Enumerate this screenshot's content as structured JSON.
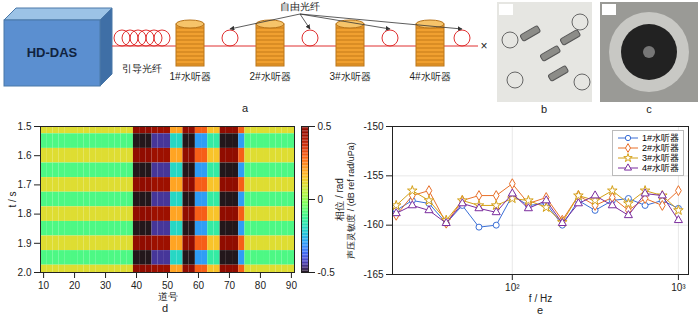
{
  "diagram": {
    "label": "a",
    "source": "HD-DAS",
    "lead_fiber": "引导光纤",
    "free_fiber": "自由光纤",
    "hydrophones": [
      "1#水听器",
      "2#水听器",
      "3#水听器",
      "4#水听器"
    ],
    "end_mark": "×"
  },
  "photos": [
    {
      "label": "b"
    },
    {
      "label": "c"
    }
  ],
  "chart_data": [
    {
      "type": "heatmap",
      "annotations": [
        "d"
      ],
      "xlabel": "道号",
      "ylabel": "t / s",
      "xlim": [
        9,
        91
      ],
      "xticks": [
        10,
        20,
        30,
        40,
        50,
        60,
        70,
        80,
        90
      ],
      "ylim": [
        1.5,
        2.0
      ],
      "yticks": [
        1.5,
        1.6,
        1.7,
        1.8,
        1.9,
        {
          "value": 2,
          "label": "2.0"
        }
      ],
      "color": "turbo",
      "zlabel": "相位 / rad",
      "zlim": [
        -0.5,
        0.5
      ],
      "zticks": [
        -0.5,
        0,
        0.5
      ],
      "cells": {
        "x": [
          10,
          12,
          14,
          16,
          18,
          20,
          22,
          24,
          26,
          28,
          30,
          32,
          34,
          36,
          38,
          40,
          42,
          44,
          46,
          48,
          50,
          52,
          54,
          56,
          58,
          60,
          62,
          64,
          66,
          68,
          70,
          72,
          74,
          76,
          78,
          80,
          82,
          84,
          86,
          88,
          90
        ],
        "y": [
          1.5,
          1.55,
          1.6,
          1.65,
          1.7,
          1.75,
          1.8,
          1.85,
          1.9,
          1.95,
          2.0
        ],
        "values": [
          [
            0.1,
            0.1,
            0.1,
            0.1,
            0.1,
            0.1,
            0.1,
            0.1,
            0.1,
            0.1,
            0.1,
            0.1,
            0.1,
            0.1,
            0.1,
            0.5,
            0.5,
            0.5,
            0.45,
            0.45,
            0.45,
            0.2,
            0.2,
            0.5,
            0.5,
            0.3,
            0.3,
            0.15,
            0.15,
            0.5,
            0.5,
            0.5,
            0.3,
            0.1,
            0.1,
            0.1,
            0.1,
            0.1,
            0.1,
            0.1,
            0.1
          ],
          [
            -0.1,
            -0.1,
            -0.1,
            -0.1,
            -0.1,
            -0.1,
            -0.1,
            -0.1,
            -0.1,
            -0.1,
            -0.1,
            -0.1,
            -0.1,
            -0.1,
            -0.1,
            -0.5,
            -0.5,
            -0.5,
            -0.45,
            -0.45,
            -0.45,
            -0.2,
            -0.2,
            -0.5,
            -0.5,
            -0.3,
            -0.3,
            -0.15,
            -0.15,
            -0.5,
            -0.5,
            -0.5,
            -0.3,
            -0.1,
            -0.1,
            -0.1,
            -0.1,
            -0.1,
            -0.1,
            -0.1,
            -0.1
          ],
          [
            0.1,
            0.1,
            0.1,
            0.1,
            0.1,
            0.1,
            0.1,
            0.1,
            0.1,
            0.1,
            0.1,
            0.1,
            0.1,
            0.1,
            0.1,
            0.5,
            0.5,
            0.5,
            0.45,
            0.45,
            0.45,
            0.2,
            0.2,
            0.5,
            0.5,
            0.3,
            0.3,
            0.15,
            0.15,
            0.5,
            0.5,
            0.5,
            0.3,
            0.1,
            0.1,
            0.1,
            0.1,
            0.1,
            0.1,
            0.1,
            0.1
          ],
          [
            -0.1,
            -0.1,
            -0.1,
            -0.1,
            -0.1,
            -0.1,
            -0.1,
            -0.1,
            -0.1,
            -0.1,
            -0.1,
            -0.1,
            -0.1,
            -0.1,
            -0.1,
            -0.5,
            -0.5,
            -0.5,
            -0.45,
            -0.45,
            -0.45,
            -0.2,
            -0.2,
            -0.5,
            -0.5,
            -0.3,
            -0.3,
            -0.15,
            -0.15,
            -0.5,
            -0.5,
            -0.5,
            -0.3,
            -0.1,
            -0.1,
            -0.1,
            -0.1,
            -0.1,
            -0.1,
            -0.1,
            -0.1
          ],
          [
            0.1,
            0.1,
            0.1,
            0.1,
            0.1,
            0.1,
            0.1,
            0.1,
            0.1,
            0.1,
            0.1,
            0.1,
            0.1,
            0.1,
            0.1,
            0.5,
            0.5,
            0.5,
            0.45,
            0.45,
            0.45,
            0.2,
            0.2,
            0.5,
            0.5,
            0.3,
            0.3,
            0.15,
            0.15,
            0.5,
            0.5,
            0.5,
            0.3,
            0.1,
            0.1,
            0.1,
            0.1,
            0.1,
            0.1,
            0.1,
            0.1
          ],
          [
            -0.1,
            -0.1,
            -0.1,
            -0.1,
            -0.1,
            -0.1,
            -0.1,
            -0.1,
            -0.1,
            -0.1,
            -0.1,
            -0.1,
            -0.1,
            -0.1,
            -0.1,
            -0.5,
            -0.5,
            -0.5,
            -0.45,
            -0.45,
            -0.45,
            -0.2,
            -0.2,
            -0.5,
            -0.5,
            -0.3,
            -0.3,
            -0.15,
            -0.15,
            -0.5,
            -0.5,
            -0.5,
            -0.3,
            -0.1,
            -0.1,
            -0.1,
            -0.1,
            -0.1,
            -0.1,
            -0.1,
            -0.1
          ],
          [
            0.1,
            0.1,
            0.1,
            0.1,
            0.1,
            0.1,
            0.1,
            0.1,
            0.1,
            0.1,
            0.1,
            0.1,
            0.1,
            0.1,
            0.1,
            0.5,
            0.5,
            0.5,
            0.45,
            0.45,
            0.45,
            0.2,
            0.2,
            0.5,
            0.5,
            0.3,
            0.3,
            0.15,
            0.15,
            0.5,
            0.5,
            0.5,
            0.3,
            0.1,
            0.1,
            0.1,
            0.1,
            0.1,
            0.1,
            0.1,
            0.1
          ],
          [
            -0.1,
            -0.1,
            -0.1,
            -0.1,
            -0.1,
            -0.1,
            -0.1,
            -0.1,
            -0.1,
            -0.1,
            -0.1,
            -0.1,
            -0.1,
            -0.1,
            -0.1,
            -0.5,
            -0.5,
            -0.5,
            -0.45,
            -0.45,
            -0.45,
            -0.2,
            -0.2,
            -0.5,
            -0.5,
            -0.3,
            -0.3,
            -0.15,
            -0.15,
            -0.5,
            -0.5,
            -0.5,
            -0.3,
            -0.1,
            -0.1,
            -0.1,
            -0.1,
            -0.1,
            -0.1,
            -0.1,
            -0.1
          ],
          [
            0.1,
            0.1,
            0.1,
            0.1,
            0.1,
            0.1,
            0.1,
            0.1,
            0.1,
            0.1,
            0.1,
            0.1,
            0.1,
            0.1,
            0.1,
            0.5,
            0.5,
            0.5,
            0.45,
            0.45,
            0.45,
            0.2,
            0.2,
            0.5,
            0.5,
            0.3,
            0.3,
            0.15,
            0.15,
            0.5,
            0.5,
            0.5,
            0.3,
            0.1,
            0.1,
            0.1,
            0.1,
            0.1,
            0.1,
            0.1,
            0.1
          ],
          [
            -0.1,
            -0.1,
            -0.1,
            -0.1,
            -0.1,
            -0.1,
            -0.1,
            -0.1,
            -0.1,
            -0.1,
            -0.1,
            -0.1,
            -0.1,
            -0.1,
            -0.1,
            -0.5,
            -0.5,
            -0.5,
            -0.45,
            -0.45,
            -0.45,
            -0.2,
            -0.2,
            -0.5,
            -0.5,
            -0.3,
            -0.3,
            -0.15,
            -0.15,
            -0.5,
            -0.5,
            -0.5,
            -0.3,
            -0.1,
            -0.1,
            -0.1,
            -0.1,
            -0.1,
            -0.1,
            -0.1,
            -0.1
          ],
          [
            0.1,
            0.1,
            0.1,
            0.1,
            0.1,
            0.1,
            0.1,
            0.1,
            0.1,
            0.1,
            0.1,
            0.1,
            0.1,
            0.1,
            0.1,
            0.5,
            0.5,
            0.5,
            0.45,
            0.45,
            0.45,
            0.2,
            0.2,
            0.5,
            0.5,
            0.3,
            0.3,
            0.15,
            0.15,
            0.5,
            0.5,
            0.5,
            0.3,
            0.1,
            0.1,
            0.1,
            0.1,
            0.1,
            0.1,
            0.1,
            0.1
          ]
        ]
      }
    },
    {
      "type": "line",
      "annotations": [
        "e"
      ],
      "xlabel": "f / Hz",
      "ylabel": "声压灵敏度 / (dB ref rad/uPa)",
      "log": "x",
      "grid": true,
      "legend": "top-right",
      "xlim": [
        19,
        1150
      ],
      "xticks": [
        {
          "value": 100,
          "label": "10²"
        },
        {
          "value": 1000,
          "label": "10³"
        }
      ],
      "ylim": [
        -165,
        -150
      ],
      "yticks": [
        -165,
        -160,
        -155,
        -150
      ],
      "x": [
        20,
        25,
        31.5,
        40,
        50,
        63,
        80,
        100,
        125,
        160,
        200,
        250,
        315,
        400,
        500,
        630,
        800,
        1000
      ],
      "series": [
        {
          "name": "1#水听器",
          "color": "#3b6fd6",
          "marker": "circle",
          "values": [
            -158.5,
            -157.5,
            -157.8,
            -159.8,
            -158.0,
            -160.2,
            -160.0,
            -157.0,
            -158.0,
            -157.8,
            -160.0,
            -157.5,
            -158.5,
            -157.5,
            -157.3,
            -158.0,
            -157.5,
            -158.3
          ]
        },
        {
          "name": "2#水听器",
          "color": "#e8702a",
          "marker": "diamond",
          "values": [
            -159.0,
            -157.0,
            -156.5,
            -159.8,
            -157.5,
            -157.0,
            -157.0,
            -155.8,
            -157.8,
            -157.2,
            -159.5,
            -157.0,
            -158.0,
            -157.2,
            -158.5,
            -157.3,
            -158.0,
            -156.5
          ]
        },
        {
          "name": "3#水听器",
          "color": "#d4a017",
          "marker": "star",
          "values": [
            -158.0,
            -156.5,
            -157.5,
            -159.5,
            -157.5,
            -158.0,
            -158.0,
            -157.3,
            -157.5,
            -158.2,
            -159.7,
            -157.0,
            -157.5,
            -156.5,
            -157.8,
            -156.5,
            -157.0,
            -158.5
          ]
        },
        {
          "name": "4#水听器",
          "color": "#7b2d9e",
          "marker": "triangle",
          "values": [
            -158.8,
            -158.0,
            -158.5,
            -159.8,
            -157.8,
            -158.3,
            -158.7,
            -156.8,
            -158.3,
            -157.5,
            -159.8,
            -157.8,
            -157.0,
            -158.0,
            -159.0,
            -156.8,
            -157.0,
            -159.5
          ]
        }
      ]
    }
  ]
}
